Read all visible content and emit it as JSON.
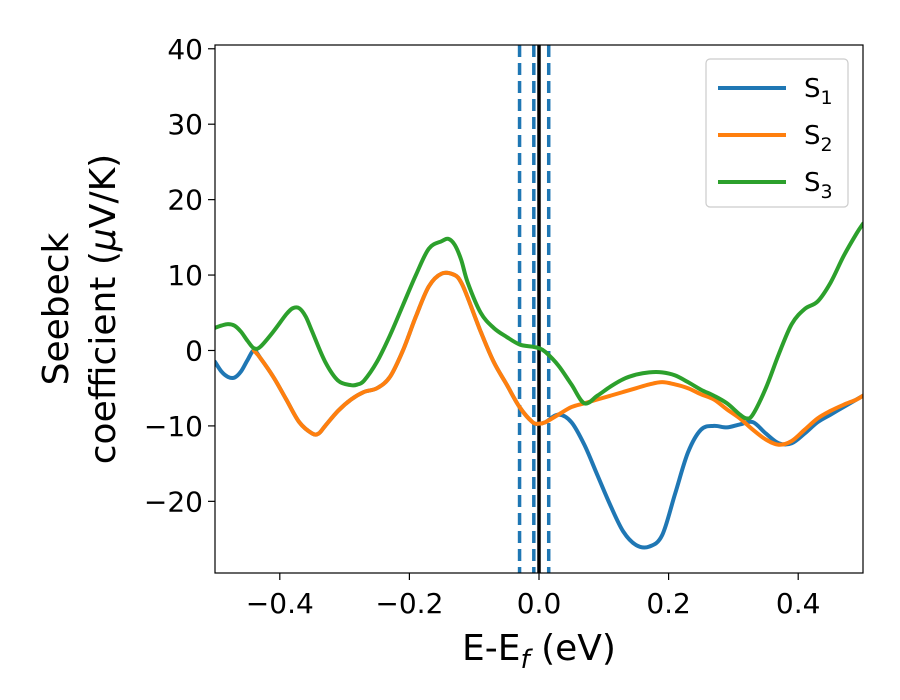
{
  "chart_data": {
    "type": "line",
    "xlabel": {
      "main": "E-E",
      "sub": "f",
      "suffix": " (eV)"
    },
    "ylabel": {
      "line1": "Seebeck",
      "line2_prefix": "coefficient  (",
      "line2_mu": "μ",
      "line2_suffix": "V/K)"
    },
    "xlim": [
      -0.5,
      0.5
    ],
    "ylim": [
      -29.5,
      40.5
    ],
    "xticks": [
      -0.4,
      -0.2,
      0.0,
      0.2,
      0.4
    ],
    "xtick_labels": [
      "−0.4",
      "−0.2",
      "0.0",
      "0.2",
      "0.4"
    ],
    "yticks": [
      -20,
      -10,
      0,
      10,
      20,
      30,
      40
    ],
    "ytick_labels": [
      "−20",
      "−10",
      "0",
      "10",
      "20",
      "30",
      "40"
    ],
    "grid": false,
    "legend_position": "top-right",
    "vertical_lines": [
      {
        "x": -0.03,
        "style": "dashed",
        "color": "#1f77b4"
      },
      {
        "x": -0.008,
        "style": "dashed",
        "color": "#1f77b4"
      },
      {
        "x": 0.0,
        "style": "solid",
        "color": "#000000"
      },
      {
        "x": 0.015,
        "style": "dashed",
        "color": "#1f77b4"
      }
    ],
    "series": [
      {
        "name": "S",
        "subscript": "1",
        "color": "#1f77b4",
        "x": [
          -0.5,
          -0.49,
          -0.48,
          -0.47,
          -0.46,
          -0.45,
          -0.44,
          -0.43,
          -0.41,
          -0.39,
          -0.37,
          -0.35,
          -0.34,
          -0.33,
          -0.31,
          -0.29,
          -0.27,
          -0.25,
          -0.23,
          -0.21,
          -0.19,
          -0.17,
          -0.15,
          -0.13,
          -0.12,
          -0.11,
          -0.09,
          -0.07,
          -0.05,
          -0.03,
          -0.01,
          0.0,
          0.01,
          0.03,
          0.05,
          0.07,
          0.09,
          0.11,
          0.13,
          0.15,
          0.17,
          0.19,
          0.21,
          0.23,
          0.25,
          0.27,
          0.29,
          0.31,
          0.33,
          0.35,
          0.37,
          0.39,
          0.41,
          0.43,
          0.45,
          0.47,
          0.49,
          0.5
        ],
        "y": [
          -1.5,
          -2.8,
          -3.5,
          -3.6,
          -2.8,
          -1.3,
          0.0,
          -1.0,
          -3.5,
          -6.5,
          -9.5,
          -11.0,
          -11.0,
          -10.0,
          -8.0,
          -6.5,
          -5.5,
          -5.0,
          -3.5,
          0.0,
          4.5,
          8.5,
          10.2,
          10.0,
          9.0,
          7.0,
          2.5,
          -1.5,
          -4.5,
          -7.5,
          -9.5,
          -9.7,
          -9.5,
          -8.5,
          -9.5,
          -12.5,
          -16.5,
          -20.5,
          -24.0,
          -25.8,
          -26.0,
          -24.5,
          -19.0,
          -13.5,
          -10.5,
          -10.0,
          -10.2,
          -9.8,
          -9.5,
          -11.0,
          -12.3,
          -12.3,
          -11.0,
          -9.5,
          -8.5,
          -7.5,
          -6.5,
          -6.0
        ]
      },
      {
        "name": "S",
        "subscript": "2",
        "color": "#ff7f0e",
        "x": [
          -0.44,
          -0.43,
          -0.41,
          -0.39,
          -0.37,
          -0.35,
          -0.34,
          -0.33,
          -0.31,
          -0.29,
          -0.27,
          -0.25,
          -0.23,
          -0.21,
          -0.19,
          -0.17,
          -0.15,
          -0.13,
          -0.12,
          -0.11,
          -0.09,
          -0.07,
          -0.05,
          -0.03,
          -0.01,
          0.0,
          0.01,
          0.03,
          0.05,
          0.07,
          0.09,
          0.11,
          0.13,
          0.15,
          0.17,
          0.19,
          0.21,
          0.23,
          0.25,
          0.27,
          0.29,
          0.31,
          0.33,
          0.35,
          0.37,
          0.39,
          0.41,
          0.43,
          0.45,
          0.47,
          0.49,
          0.5
        ],
        "y": [
          0.0,
          -1.0,
          -3.5,
          -6.5,
          -9.5,
          -11.0,
          -11.0,
          -10.0,
          -8.0,
          -6.5,
          -5.5,
          -5.0,
          -3.5,
          0.0,
          4.5,
          8.5,
          10.2,
          10.0,
          9.0,
          7.0,
          2.5,
          -1.5,
          -4.5,
          -7.5,
          -9.5,
          -9.7,
          -9.5,
          -8.5,
          -7.5,
          -7.0,
          -6.5,
          -6.0,
          -5.5,
          -5.0,
          -4.5,
          -4.2,
          -4.5,
          -5.0,
          -5.8,
          -6.5,
          -7.8,
          -9.0,
          -10.5,
          -11.8,
          -12.5,
          -12.0,
          -10.5,
          -9.0,
          -8.0,
          -7.2,
          -6.5,
          -6.0
        ]
      },
      {
        "name": "S",
        "subscript": "3",
        "color": "#2ca02c",
        "x": [
          -0.5,
          -0.49,
          -0.48,
          -0.47,
          -0.46,
          -0.45,
          -0.44,
          -0.43,
          -0.41,
          -0.39,
          -0.38,
          -0.37,
          -0.36,
          -0.35,
          -0.33,
          -0.31,
          -0.29,
          -0.28,
          -0.27,
          -0.25,
          -0.23,
          -0.21,
          -0.19,
          -0.17,
          -0.15,
          -0.14,
          -0.13,
          -0.12,
          -0.11,
          -0.09,
          -0.07,
          -0.05,
          -0.03,
          -0.01,
          0.0,
          0.01,
          0.03,
          0.05,
          0.07,
          0.09,
          0.11,
          0.13,
          0.15,
          0.17,
          0.19,
          0.21,
          0.23,
          0.25,
          0.27,
          0.29,
          0.31,
          0.32,
          0.33,
          0.35,
          0.37,
          0.39,
          0.41,
          0.43,
          0.45,
          0.47,
          0.49,
          0.5
        ],
        "y": [
          3.0,
          3.3,
          3.5,
          3.3,
          2.5,
          1.3,
          0.3,
          0.5,
          2.5,
          4.8,
          5.6,
          5.6,
          4.5,
          2.5,
          -1.5,
          -4.0,
          -4.6,
          -4.5,
          -4.0,
          -1.5,
          2.0,
          6.0,
          10.0,
          13.5,
          14.5,
          14.8,
          14.0,
          12.0,
          9.0,
          5.0,
          3.0,
          1.8,
          0.8,
          0.5,
          0.3,
          -0.2,
          -2.0,
          -4.5,
          -7.0,
          -6.0,
          -4.8,
          -3.8,
          -3.2,
          -2.9,
          -2.9,
          -3.3,
          -4.2,
          -5.2,
          -6.0,
          -7.0,
          -8.5,
          -9.0,
          -8.5,
          -5.0,
          -0.5,
          3.5,
          5.5,
          6.5,
          9.0,
          12.5,
          15.5,
          16.8
        ]
      }
    ]
  }
}
